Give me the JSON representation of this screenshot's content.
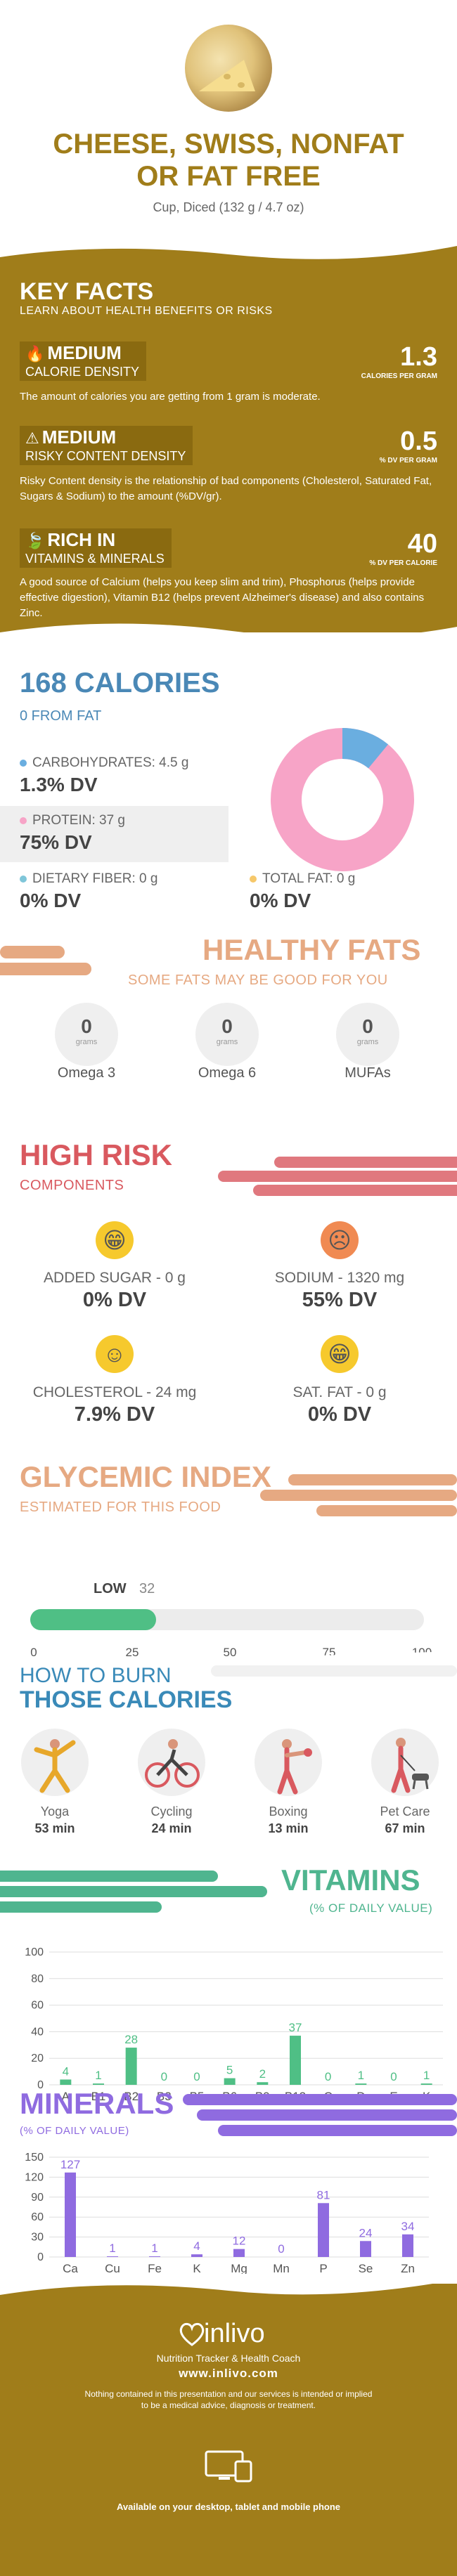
{
  "header": {
    "title_line1": "CHEESE, SWISS, NONFAT",
    "title_line2": "OR FAT FREE",
    "serving": "Cup, Diced (132 g / 4.7 oz)"
  },
  "key_facts": {
    "heading": "KEY FACTS",
    "subheading": "LEARN ABOUT HEALTH BENEFITS OR RISKS",
    "calorie_density": {
      "level": "MEDIUM",
      "name": "CALORIE DENSITY",
      "value": "1.3",
      "unit": "CALORIES PER GRAM",
      "desc": "The amount of calories you are getting from 1 gram is moderate."
    },
    "risky_content": {
      "level": "MEDIUM",
      "name": "RISKY CONTENT DENSITY",
      "value": "0.5",
      "unit": "% DV PER GRAM",
      "desc": "Risky Content density is the relationship of bad components (Cholesterol, Saturated Fat, Sugars & Sodium) to the amount (%DV/gr)."
    },
    "vitamins_minerals": {
      "level": "RICH  IN",
      "name": "VITAMINS & MINERALS",
      "value": "40",
      "unit": "% DV PER CALORIE",
      "desc": "A good source of Calcium (helps you keep slim and trim), Phosphorus (helps provide effective digestion), Vitamin B12 (helps prevent Alzheimer's disease) and also contains Zinc."
    }
  },
  "calories": {
    "heading": "168 CALORIES",
    "from_fat": "0 FROM FAT",
    "carbs_label": "CARBOHYDRATES: 4.5 g",
    "carbs_dv": "1.3% DV",
    "protein_label": "PROTEIN: 37 g",
    "protein_dv": "75% DV",
    "fiber_label": "DIETARY FIBER: 0 g",
    "fiber_dv": "0% DV",
    "fat_label": "TOTAL FAT: 0 g",
    "fat_dv": "0% DV",
    "colors": {
      "carbs": "#6aaee0",
      "protein": "#f7a4c7",
      "fiber": "#7fc6d9",
      "fat": "#f6c86a"
    },
    "donut": {
      "carbs_share": 0.11,
      "protein_share": 0.89
    }
  },
  "healthy_fats": {
    "heading": "HEALTHY FATS",
    "subheading": "SOME FATS MAY BE GOOD FOR YOU",
    "unit": "grams",
    "items": [
      {
        "name": "Omega 3",
        "value": "0"
      },
      {
        "name": "Omega 6",
        "value": "0"
      },
      {
        "name": "MUFAs",
        "value": "0"
      }
    ]
  },
  "high_risk": {
    "heading": "HIGH RISK",
    "subheading": "COMPONENTS",
    "items": [
      {
        "label": "ADDED SUGAR - 0 g",
        "dv": "0% DV",
        "mood": "happy"
      },
      {
        "label": "SODIUM - 1320 mg",
        "dv": "55% DV",
        "mood": "sad"
      },
      {
        "label": "CHOLESTEROL - 24 mg",
        "dv": "7.9% DV",
        "mood": "smile"
      },
      {
        "label": "SAT. FAT - 0 g",
        "dv": "0% DV",
        "mood": "happy"
      }
    ]
  },
  "glycemic": {
    "heading": "GLYCEMIC INDEX",
    "subheading": "ESTIMATED FOR THIS FOOD",
    "level": "LOW",
    "value": "32",
    "value_num": 32,
    "ticks": [
      "0",
      "25",
      "50",
      "75",
      "100"
    ]
  },
  "burn": {
    "heading_line1": "HOW TO BURN",
    "heading_line2": "THOSE CALORIES",
    "items": [
      {
        "name": "Yoga",
        "min": "53 min",
        "icon": "yoga-icon"
      },
      {
        "name": "Cycling",
        "min": "24 min",
        "icon": "cycling-icon"
      },
      {
        "name": "Boxing",
        "min": "13 min",
        "icon": "boxing-icon"
      },
      {
        "name": "Pet Care",
        "min": "67 min",
        "icon": "pet-care-icon"
      }
    ]
  },
  "vitamins": {
    "heading": "VITAMINS",
    "subheading": "(% OF DAILY VALUE)"
  },
  "minerals": {
    "heading": "MINERALS",
    "subheading": "(% OF DAILY VALUE)"
  },
  "chart_data": [
    {
      "type": "bar",
      "title": "VITAMINS",
      "categories": [
        "A",
        "B1",
        "B2",
        "B3",
        "B5",
        "B6",
        "B9",
        "B12",
        "C",
        "D",
        "E",
        "K"
      ],
      "values": [
        4,
        1,
        28,
        0,
        0,
        5,
        2,
        37,
        0,
        1,
        0,
        1
      ],
      "yticks": [
        "0",
        "20",
        "40",
        "60",
        "80",
        "100"
      ],
      "ylim": [
        0,
        100
      ],
      "color": "#4fbf85"
    },
    {
      "type": "bar",
      "title": "MINERALS",
      "categories": [
        "Ca",
        "Cu",
        "Fe",
        "K",
        "Mg",
        "Mn",
        "P",
        "Se",
        "Zn"
      ],
      "values": [
        127,
        1,
        1,
        4,
        12,
        0,
        81,
        24,
        34
      ],
      "yticks": [
        "0",
        "30",
        "60",
        "90",
        "120",
        "150"
      ],
      "ylim": [
        0,
        150
      ],
      "color": "#8f6be0"
    }
  ],
  "footer": {
    "brand": "inlivo",
    "tagline": "Nutrition Tracker & Health Coach",
    "url": "www.inlivo.com",
    "disclaimer_line1": "Nothing contained in this presentation and our services is intended or implied",
    "disclaimer_line2": "to be a medical advice, diagnosis or treatment.",
    "devices": "Available on your desktop, tablet and mobile phone"
  }
}
